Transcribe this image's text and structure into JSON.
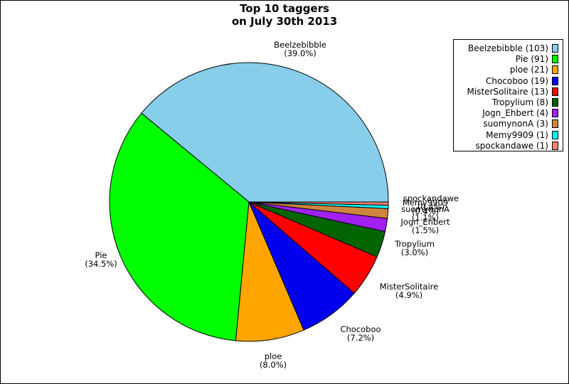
{
  "chart_data": {
    "type": "pie",
    "title_lines": [
      "Top 10 taggers",
      "on July 30th 2013"
    ],
    "slices": [
      {
        "name": "Beelzebibble",
        "value": 103,
        "pct_label": "(39.0%)",
        "legend": "Beelzebibble (103)",
        "color": "#87CEEB"
      },
      {
        "name": "Pie",
        "value": 91,
        "pct_label": "(34.5%)",
        "legend": "Pie (91)",
        "color": "#00FF00"
      },
      {
        "name": "ploe",
        "value": 21,
        "pct_label": "(8.0%)",
        "legend": "ploe (21)",
        "color": "#FFA500"
      },
      {
        "name": "Chocoboo",
        "value": 19,
        "pct_label": "(7.2%)",
        "legend": "Chocoboo (19)",
        "color": "#0000EE"
      },
      {
        "name": "MisterSolitaire",
        "value": 13,
        "pct_label": "(4.9%)",
        "legend": "MisterSolitaire (13)",
        "color": "#FF0000"
      },
      {
        "name": "Tropylium",
        "value": 8,
        "pct_label": "(3.0%)",
        "legend": "Tropylium (8)",
        "color": "#006400"
      },
      {
        "name": "Jogn_Ehbert",
        "value": 4,
        "pct_label": "(1.5%)",
        "legend": "Jogn_Ehbert (4)",
        "color": "#A020F0"
      },
      {
        "name": "suomynonA",
        "value": 3,
        "pct_label": "(1.1%)",
        "legend": "suomynonA (3)",
        "color": "#CD853F"
      },
      {
        "name": "Memy9909",
        "value": 1,
        "pct_label": "(0.4%)",
        "legend": "Memy9909 (1)",
        "color": "#00FFFF"
      },
      {
        "name": "spockandawe",
        "value": 1,
        "pct_label": "(0.4%)",
        "legend": "spockandawe (1)",
        "color": "#FA8072"
      }
    ],
    "legend_position": "top-right"
  }
}
